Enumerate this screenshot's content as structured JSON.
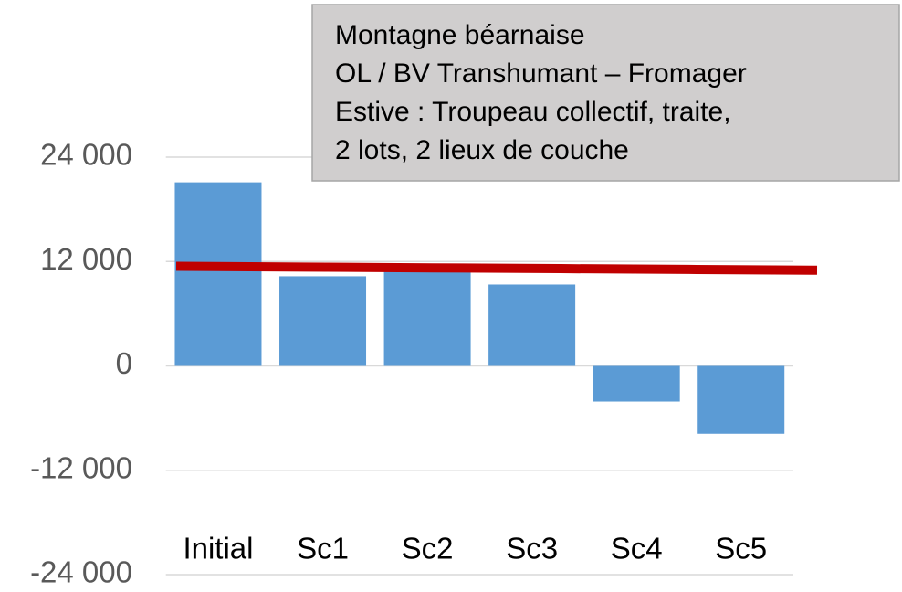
{
  "chart_data": {
    "type": "bar",
    "categories": [
      "Initial",
      "Sc1",
      "Sc2",
      "Sc3",
      "Sc4",
      "Sc5"
    ],
    "series": [
      {
        "type": "bar",
        "color": "#5b9bd5",
        "values": [
          21100,
          10300,
          11000,
          9350,
          -4100,
          -7800
        ]
      },
      {
        "type": "line",
        "color": "#c00000",
        "values": [
          11450,
          11360,
          11270,
          11180,
          11090,
          11000
        ]
      }
    ],
    "ylim": [
      -24000,
      24000
    ],
    "yticks": [
      {
        "value": -24000,
        "label": "-24 000"
      },
      {
        "value": -12000,
        "label": "-12 000"
      },
      0,
      {
        "value": 12000,
        "label": "12 000"
      },
      {
        "value": 24000,
        "label": "24 000"
      }
    ],
    "grid": true,
    "annotation": [
      "Montagne béarnaise",
      "OL / BV Transhumant  – Fromager",
      "Estive : Troupeau collectif, traite,",
      "2 lots, 2 lieux de couche"
    ]
  }
}
